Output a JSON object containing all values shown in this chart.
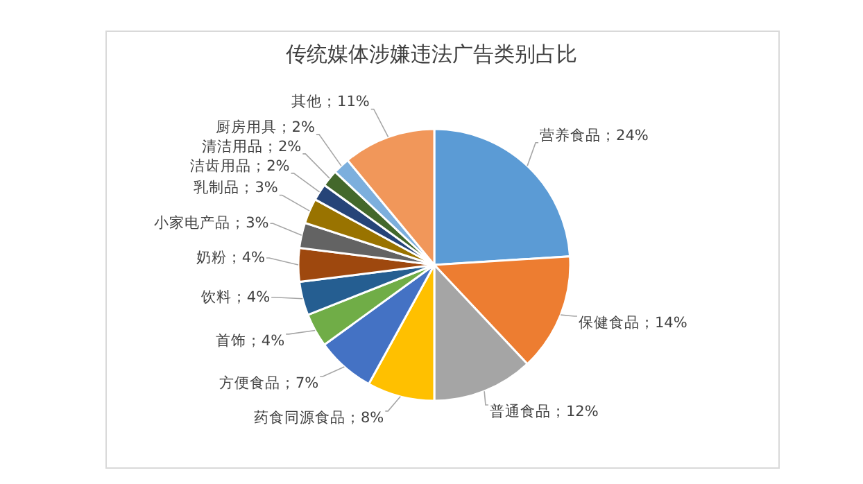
{
  "chart_data": {
    "type": "pie",
    "title": "传统媒体涉嫌违法广告类别占比",
    "categories": [
      "营养食品",
      "保健食品",
      "普通食品",
      "药食同源食品",
      "方便食品",
      "首饰",
      "饮料",
      "奶粉",
      "小家电产品",
      "乳制品",
      "洁齿用品",
      "清洁用品",
      "厨房用具",
      "其他"
    ],
    "values": [
      24,
      14,
      12,
      8,
      7,
      4,
      4,
      4,
      3,
      3,
      2,
      2,
      2,
      11
    ],
    "colors": [
      "#5b9bd5",
      "#ed7d31",
      "#a5a5a5",
      "#ffc000",
      "#4472c4",
      "#70ad47",
      "#255e91",
      "#9e480e",
      "#636363",
      "#997300",
      "#264478",
      "#43682b",
      "#7cafdd",
      "#f1975a"
    ],
    "value_labels": [
      "；24%",
      "；14%",
      "；12%",
      "；8%",
      "；7%",
      "；4%",
      "；4%",
      "；4%",
      "；3%",
      "；3%",
      "；2%",
      "；2%",
      "；2%",
      "；11%"
    ],
    "legend": false
  }
}
